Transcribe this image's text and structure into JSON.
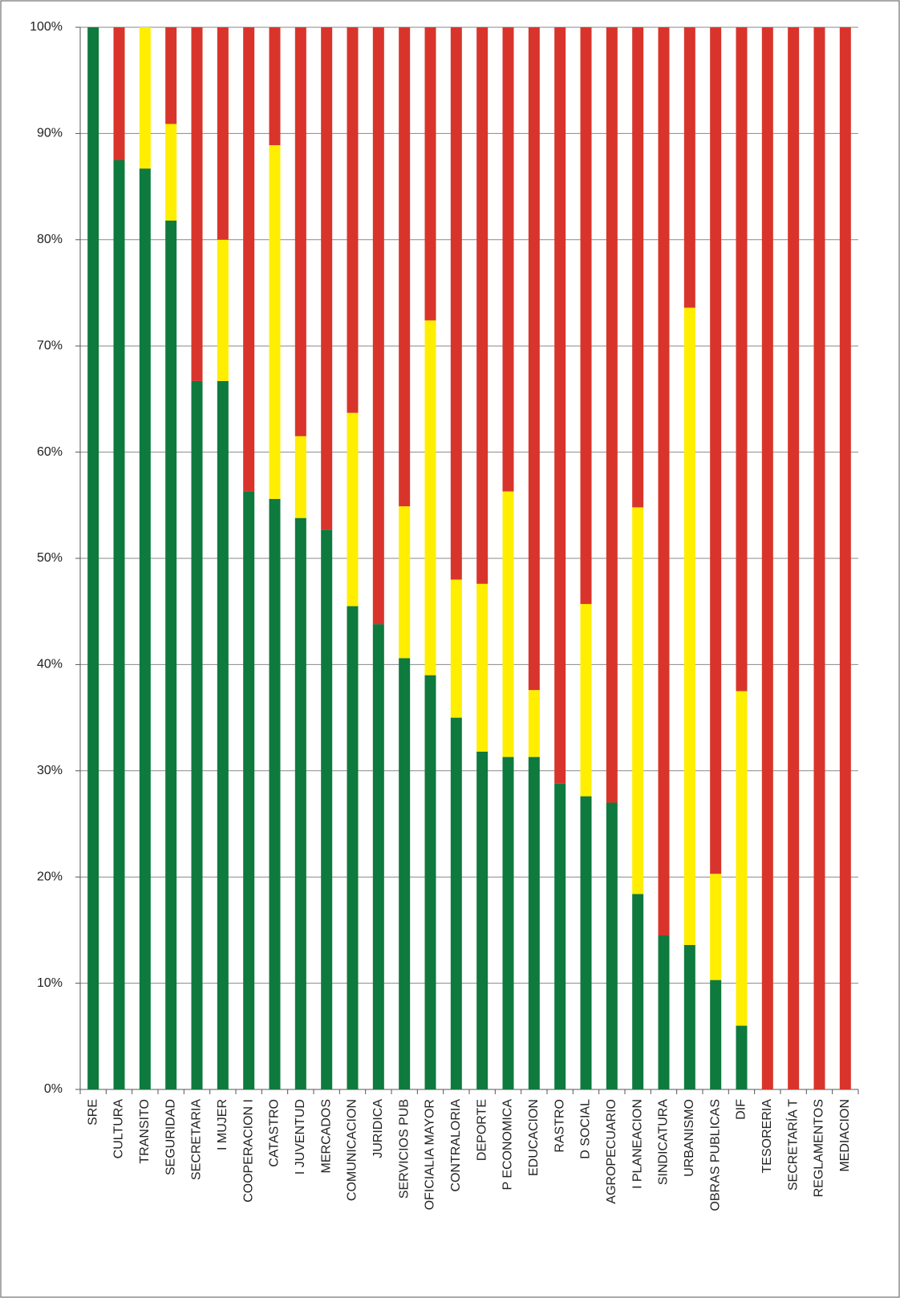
{
  "chart_data": {
    "type": "stacked_bar",
    "categories": [
      "SRE",
      "CULTURA",
      "TRANSITO",
      "SEGURIDAD",
      "SECRETARIA",
      "I MUJER",
      "COOPERACION I",
      "CATASTRO",
      "I JUVENTUD",
      "MERCADOS",
      "COMUNICACION",
      "JURIDICA",
      "SERVICIOS PUB",
      "OFICIALIA MAYOR",
      "CONTRALORIA",
      "DEPORTE",
      "P ECONOMICA",
      "EDUCACION",
      "RASTRO",
      "D SOCIAL",
      "AGROPECUARIO",
      "I PLANEACION",
      "SINDICATURA",
      "URBANISMO",
      "OBRAS PUBLICAS",
      "DIF",
      "TESORERIA",
      "SECRETARÍA T",
      "REGLAMENTOS",
      "MEDIACION"
    ],
    "series": [
      {
        "color": "#0e7a3e",
        "values": [
          100,
          87.5,
          86.7,
          81.8,
          66.7,
          66.7,
          56.3,
          55.6,
          53.8,
          52.7,
          45.5,
          43.8,
          40.6,
          39.0,
          35.0,
          31.8,
          31.3,
          31.3,
          28.8,
          27.6,
          27.0,
          18.4,
          14.5,
          13.6,
          10.3,
          6.0,
          0,
          0,
          0,
          0
        ]
      },
      {
        "color": "#ffee00",
        "values": [
          0,
          0,
          13.3,
          9.1,
          0,
          13.3,
          0,
          33.3,
          7.7,
          0,
          18.2,
          0,
          14.3,
          33.4,
          13.0,
          15.8,
          25.0,
          6.3,
          0,
          18.1,
          0,
          36.4,
          0,
          60.0,
          10.0,
          31.5,
          0,
          0,
          0,
          0
        ]
      },
      {
        "color": "#d9342b",
        "values": [
          0,
          12.5,
          0,
          9.1,
          33.3,
          20.0,
          43.7,
          11.1,
          38.5,
          47.3,
          36.3,
          56.2,
          45.1,
          27.6,
          52.0,
          52.4,
          43.7,
          62.4,
          71.2,
          54.3,
          73.0,
          45.2,
          85.5,
          26.4,
          79.7,
          62.5,
          100,
          100,
          100,
          100
        ]
      }
    ],
    "ylim": [
      0,
      100
    ],
    "yticks": [
      {
        "value": 0,
        "label": "0%"
      },
      {
        "value": 10,
        "label": "10%"
      },
      {
        "value": 20,
        "label": "20%"
      },
      {
        "value": 30,
        "label": "30%"
      },
      {
        "value": 40,
        "label": "40%"
      },
      {
        "value": 50,
        "label": "50%"
      },
      {
        "value": 60,
        "label": "60%"
      },
      {
        "value": 70,
        "label": "70%"
      },
      {
        "value": 80,
        "label": "80%"
      },
      {
        "value": 90,
        "label": "90%"
      },
      {
        "value": 100,
        "label": "100%"
      }
    ],
    "grid": true
  }
}
